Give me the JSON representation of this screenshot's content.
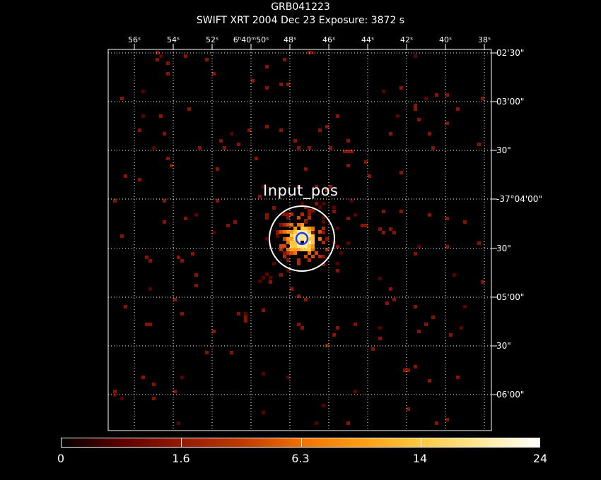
{
  "header": {
    "title": "GRB041223",
    "subtitle": "SWIFT XRT    2004 Dec 23     Exposure: 3872 s"
  },
  "ra_axis": {
    "ticks": [
      "56ˢ",
      "54ˢ",
      "52ˢ",
      "6ʰ40ᵐ50ˢ",
      "48ˢ",
      "46ˢ",
      "44ˢ",
      "42ˢ",
      "40ˢ",
      "38ˢ"
    ]
  },
  "dec_axis": {
    "ticks": [
      "02'30\"",
      "03'00\"",
      "30\"",
      "-37°04'00\"",
      "30\"",
      "05'00\"",
      "30\"",
      "06'00\""
    ]
  },
  "source": {
    "label": "Input_pos"
  },
  "colorbar": {
    "labels": [
      "0",
      "1.6",
      "6.3",
      "14",
      "24"
    ],
    "colors": [
      "#000000",
      "#5a0000",
      "#8a1200",
      "#c03a00",
      "#f07000",
      "#ff9a10",
      "#ffc840",
      "#ffea9a",
      "#ffffff"
    ]
  },
  "colors": {
    "grid": "#ffffff",
    "frame": "#ffffff",
    "error_circle": "#ffffff",
    "centroid_circle": "#1a3cff",
    "background": "#000000"
  }
}
